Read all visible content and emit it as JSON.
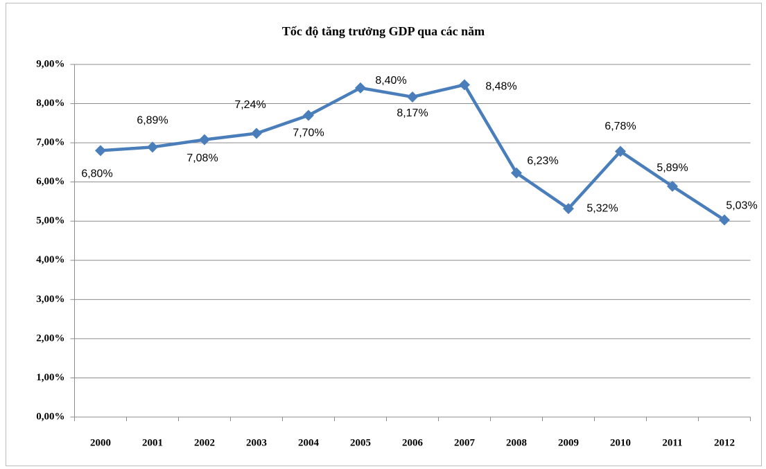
{
  "chart_data": {
    "type": "line",
    "title": "Tốc độ tăng trưởng GDP qua các năm",
    "categories": [
      "2000",
      "2001",
      "2002",
      "2003",
      "2004",
      "2005",
      "2006",
      "2007",
      "2008",
      "2009",
      "2010",
      "2011",
      "2012"
    ],
    "series": [
      {
        "name": "GDP",
        "color": "#4a7ebb",
        "values": [
          6.8,
          6.89,
          7.08,
          7.24,
          7.7,
          8.4,
          8.17,
          8.48,
          6.23,
          5.32,
          6.78,
          5.89,
          5.03
        ],
        "value_labels": [
          "6,80%",
          "6,89%",
          "7,08%",
          "7,24%",
          "7,70%",
          "8,40%",
          "8,17%",
          "8,48%",
          "6,23%",
          "5,32%",
          "6,78%",
          "5,89%",
          "5,03%"
        ]
      }
    ],
    "ylim": [
      0,
      9
    ],
    "yticks": [
      {
        "value": 0,
        "label": "0,00%"
      },
      {
        "value": 1,
        "label": "1,00%"
      },
      {
        "value": 2,
        "label": "2,00%"
      },
      {
        "value": 3,
        "label": "3,00%"
      },
      {
        "value": 4,
        "label": "4,00%"
      },
      {
        "value": 5,
        "label": "5,00%"
      },
      {
        "value": 6,
        "label": "6,00%"
      },
      {
        "value": 7,
        "label": "7,00%"
      },
      {
        "value": 8,
        "label": "8,00%"
      },
      {
        "value": 9,
        "label": "9,00%"
      }
    ],
    "grid": true
  }
}
